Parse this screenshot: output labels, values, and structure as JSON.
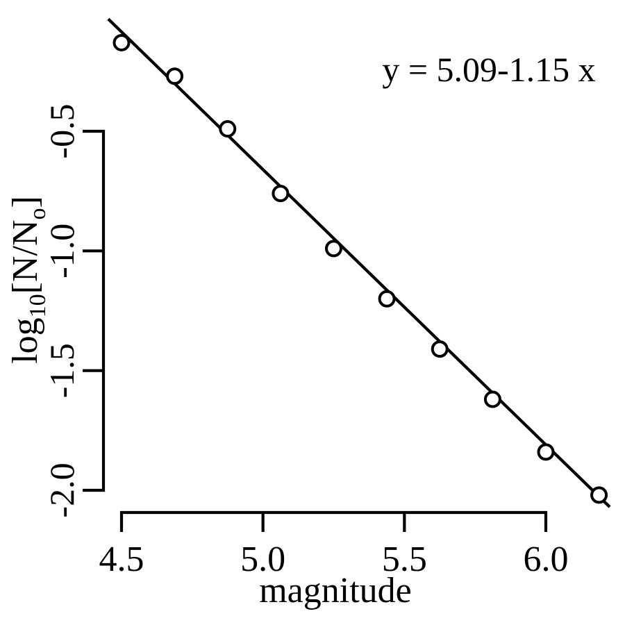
{
  "colors": {
    "ink": "#000000",
    "paper": "#ffffff"
  },
  "chart_data": {
    "type": "scatter",
    "title": "",
    "x_axis": {
      "label": "magnitude",
      "tick_labels": [
        "4.5",
        "5.0",
        "5.5",
        "6.0"
      ],
      "tick_values": [
        4.5,
        5.0,
        5.5,
        6.0
      ],
      "range": [
        4.5,
        6.0
      ]
    },
    "y_axis": {
      "label_text": "log10[N/No]",
      "label_parts": [
        {
          "text": "log",
          "sub": false
        },
        {
          "text": "10",
          "sub": true
        },
        {
          "text": "[N/N",
          "sub": false
        },
        {
          "text": "o",
          "sub": true
        },
        {
          "text": "]",
          "sub": false
        }
      ],
      "tick_labels": [
        "-0.5",
        "-1.0",
        "-1.5",
        "-2.0"
      ],
      "tick_values": [
        -0.5,
        -1.0,
        -1.5,
        -2.0
      ],
      "range": [
        -2.0,
        -0.5
      ]
    },
    "points": [
      {
        "x": 4.5,
        "y": -0.13
      },
      {
        "x": 4.688,
        "y": -0.27
      },
      {
        "x": 4.875,
        "y": -0.49
      },
      {
        "x": 5.062,
        "y": -0.76
      },
      {
        "x": 5.25,
        "y": -0.99
      },
      {
        "x": 5.438,
        "y": -1.2
      },
      {
        "x": 5.625,
        "y": -1.41
      },
      {
        "x": 5.812,
        "y": -1.62
      },
      {
        "x": 6.0,
        "y": -1.84
      },
      {
        "x": 6.188,
        "y": -2.02
      }
    ],
    "fit_line": {
      "equation": "y = 5.09-1.15 x",
      "intercept": 5.09,
      "slope": -1.15,
      "x_start": 4.453,
      "x_end": 6.226
    },
    "marker": "open-circle",
    "grid": false,
    "legend": null
  }
}
